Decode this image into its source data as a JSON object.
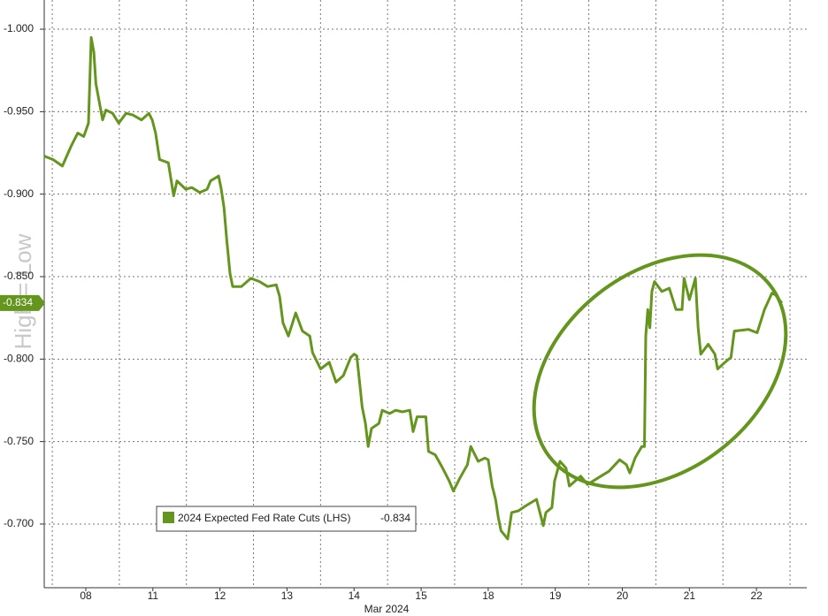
{
  "chart_data": {
    "type": "line",
    "xlabel": "Mar 2024",
    "watermark": "High = Low",
    "last_value": -0.834,
    "grid": true,
    "xlim": [
      -0.12,
      11.25
    ],
    "ylim": [
      -0.6614,
      -1.0177
    ],
    "yticks": [
      {
        "value": -1.0,
        "label": "-1.000"
      },
      {
        "value": -0.95,
        "label": "-0.950"
      },
      {
        "value": -0.9,
        "label": "-0.900"
      },
      {
        "value": -0.85,
        "label": "-0.850"
      },
      {
        "value": -0.8,
        "label": "-0.800"
      },
      {
        "value": -0.75,
        "label": "-0.750"
      },
      {
        "value": -0.7,
        "label": "-0.700"
      }
    ],
    "xticks": [
      {
        "value": 0.5,
        "label": "08"
      },
      {
        "value": 1.5,
        "label": "11"
      },
      {
        "value": 2.5,
        "label": "12"
      },
      {
        "value": 3.5,
        "label": "13"
      },
      {
        "value": 4.5,
        "label": "14"
      },
      {
        "value": 5.5,
        "label": "15"
      },
      {
        "value": 6.5,
        "label": "18"
      },
      {
        "value": 7.5,
        "label": "19"
      },
      {
        "value": 8.5,
        "label": "20"
      },
      {
        "value": 9.5,
        "label": "21"
      },
      {
        "value": 10.5,
        "label": "22"
      }
    ],
    "x": [
      -0.12,
      0.01,
      0.15,
      0.28,
      0.38,
      0.47,
      0.54,
      0.58,
      0.62,
      0.65,
      0.7,
      0.75,
      0.8,
      0.9,
      0.99,
      1.1,
      1.2,
      1.33,
      1.44,
      1.49,
      1.54,
      1.6,
      1.73,
      1.81,
      1.86,
      1.99,
      2.08,
      2.2,
      2.31,
      2.36,
      2.48,
      2.52,
      2.56,
      2.6,
      2.65,
      2.69,
      2.82,
      2.96,
      3.09,
      3.21,
      3.34,
      3.39,
      3.44,
      3.52,
      3.63,
      3.73,
      3.84,
      3.88,
      4.0,
      4.13,
      4.23,
      4.34,
      4.45,
      4.5,
      4.54,
      4.58,
      4.62,
      4.67,
      4.71,
      4.76,
      4.87,
      4.92,
      5.03,
      5.12,
      5.22,
      5.33,
      5.38,
      5.44,
      5.57,
      5.61,
      5.71,
      5.82,
      5.92,
      5.98,
      6.08,
      6.19,
      6.24,
      6.35,
      6.45,
      6.5,
      6.56,
      6.61,
      6.65,
      6.69,
      6.79,
      6.85,
      6.95,
      7.06,
      7.22,
      7.32,
      7.36,
      7.45,
      7.49,
      7.57,
      7.66,
      7.71,
      7.88,
      7.98,
      8.14,
      8.3,
      8.46,
      8.56,
      8.61,
      8.69,
      8.79,
      8.83,
      8.85,
      8.88,
      8.91,
      8.94,
      8.98,
      9.09,
      9.2,
      9.3,
      9.39,
      9.42,
      9.5,
      9.59,
      9.63,
      9.67,
      9.78,
      9.88,
      9.92,
      10.03,
      10.12,
      10.17,
      10.38,
      10.51,
      10.62,
      10.73,
      10.78,
      10.88
    ],
    "series": [
      {
        "name": "2024 Expected Fed Rate Cuts (LHS)",
        "color": "#64951d",
        "values": [
          -0.923,
          -0.921,
          -0.917,
          -0.929,
          -0.937,
          -0.935,
          -0.943,
          -0.995,
          -0.986,
          -0.967,
          -0.956,
          -0.945,
          -0.951,
          -0.949,
          -0.943,
          -0.949,
          -0.948,
          -0.945,
          -0.949,
          -0.945,
          -0.937,
          -0.921,
          -0.919,
          -0.899,
          -0.908,
          -0.903,
          -0.904,
          -0.901,
          -0.903,
          -0.908,
          -0.911,
          -0.903,
          -0.892,
          -0.873,
          -0.852,
          -0.844,
          -0.844,
          -0.849,
          -0.847,
          -0.844,
          -0.845,
          -0.838,
          -0.822,
          -0.814,
          -0.828,
          -0.817,
          -0.814,
          -0.804,
          -0.794,
          -0.798,
          -0.786,
          -0.79,
          -0.801,
          -0.803,
          -0.802,
          -0.787,
          -0.771,
          -0.761,
          -0.747,
          -0.758,
          -0.761,
          -0.769,
          -0.767,
          -0.769,
          -0.768,
          -0.769,
          -0.756,
          -0.765,
          -0.765,
          -0.744,
          -0.742,
          -0.734,
          -0.726,
          -0.72,
          -0.728,
          -0.736,
          -0.747,
          -0.738,
          -0.74,
          -0.739,
          -0.723,
          -0.715,
          -0.704,
          -0.696,
          -0.691,
          -0.707,
          -0.708,
          -0.711,
          -0.715,
          -0.699,
          -0.707,
          -0.71,
          -0.726,
          -0.738,
          -0.734,
          -0.723,
          -0.729,
          -0.724,
          -0.728,
          -0.732,
          -0.739,
          -0.736,
          -0.731,
          -0.74,
          -0.747,
          -0.747,
          -0.814,
          -0.83,
          -0.819,
          -0.841,
          -0.847,
          -0.841,
          -0.843,
          -0.83,
          -0.83,
          -0.849,
          -0.836,
          -0.849,
          -0.819,
          -0.803,
          -0.809,
          -0.803,
          -0.794,
          -0.798,
          -0.801,
          -0.817,
          -0.818,
          -0.816,
          -0.83,
          -0.84,
          -0.839,
          -0.834
        ]
      }
    ]
  }
}
